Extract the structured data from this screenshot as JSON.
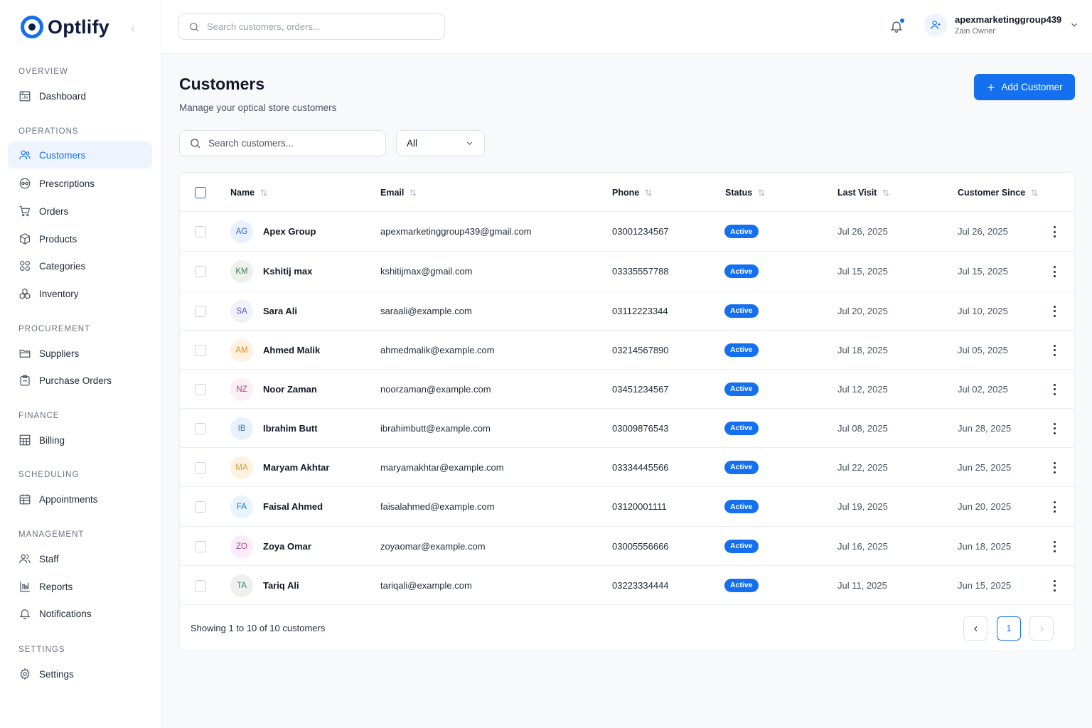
{
  "brand": {
    "name": "Optlify"
  },
  "topbar": {
    "search_placeholder": "Search customers, orders...",
    "user_name": "apexmarketinggroup439",
    "user_role": "Zain Owner"
  },
  "sidebar": {
    "sections": {
      "overview": "OVERVIEW",
      "operations": "OPERATIONS",
      "procurement": "PROCUREMENT",
      "finance": "FINANCE",
      "scheduling": "SCHEDULING",
      "management": "MANAGEMENT",
      "settings": "SETTINGS"
    },
    "items": {
      "dashboard": "Dashboard",
      "customers": "Customers",
      "prescriptions": "Prescriptions",
      "orders": "Orders",
      "products": "Products",
      "categories": "Categories",
      "inventory": "Inventory",
      "suppliers": "Suppliers",
      "purchase_orders": "Purchase Orders",
      "billing": "Billing",
      "appointments": "Appointments",
      "staff": "Staff",
      "reports": "Reports",
      "notifications": "Notifications",
      "settings": "Settings"
    },
    "active": "customers"
  },
  "page": {
    "title": "Customers",
    "subtitle": "Manage your optical store customers",
    "add_button": "Add Customer",
    "search_placeholder": "Search customers...",
    "status_filter": "All"
  },
  "table": {
    "columns": {
      "name": "Name",
      "email": "Email",
      "phone": "Phone",
      "status": "Status",
      "last_visit": "Last Visit",
      "customer_since": "Customer Since"
    },
    "rows": [
      {
        "initials": "AG",
        "name": "Apex Group",
        "email": "apexmarketinggroup439@gmail.com",
        "phone": "03001234567",
        "status": "Active",
        "last_visit": "Jul 26, 2025",
        "since": "Jul 26, 2025",
        "avatar_bg": "#e8f1fd",
        "avatar_fg": "#2f6fd0"
      },
      {
        "initials": "KM",
        "name": "Kshitij max",
        "email": "kshitijmax@gmail.com",
        "phone": "03335557788",
        "status": "Active",
        "last_visit": "Jul 15, 2025",
        "since": "Jul 15, 2025",
        "avatar_bg": "#eef0ee",
        "avatar_fg": "#2f8a4b"
      },
      {
        "initials": "SA",
        "name": "Sara Ali",
        "email": "saraali@example.com",
        "phone": "03112223344",
        "status": "Active",
        "last_visit": "Jul 20, 2025",
        "since": "Jul 10, 2025",
        "avatar_bg": "#f0f1fb",
        "avatar_fg": "#4a5cd3"
      },
      {
        "initials": "AM",
        "name": "Ahmed Malik",
        "email": "ahmedmalik@example.com",
        "phone": "03214567890",
        "status": "Active",
        "last_visit": "Jul 18, 2025",
        "since": "Jul 05, 2025",
        "avatar_bg": "#fdf1e2",
        "avatar_fg": "#e08a22"
      },
      {
        "initials": "NZ",
        "name": "Noor Zaman",
        "email": "noorzaman@example.com",
        "phone": "03451234567",
        "status": "Active",
        "last_visit": "Jul 12, 2025",
        "since": "Jul 02, 2025",
        "avatar_bg": "#fbeef5",
        "avatar_fg": "#b0457e"
      },
      {
        "initials": "IB",
        "name": "Ibrahim Butt",
        "email": "ibrahimbutt@example.com",
        "phone": "03009876543",
        "status": "Active",
        "last_visit": "Jul 08, 2025",
        "since": "Jun 28, 2025",
        "avatar_bg": "#e8f1fb",
        "avatar_fg": "#3b7ab8"
      },
      {
        "initials": "MA",
        "name": "Maryam Akhtar",
        "email": "maryamakhtar@example.com",
        "phone": "03334445566",
        "status": "Active",
        "last_visit": "Jul 22, 2025",
        "since": "Jun 25, 2025",
        "avatar_bg": "#fdf2e0",
        "avatar_fg": "#e49b2e"
      },
      {
        "initials": "FA",
        "name": "Faisal Ahmed",
        "email": "faisalahmed@example.com",
        "phone": "03120001111",
        "status": "Active",
        "last_visit": "Jul 19, 2025",
        "since": "Jun 20, 2025",
        "avatar_bg": "#e7f3fd",
        "avatar_fg": "#2877c7"
      },
      {
        "initials": "ZO",
        "name": "Zoya Omar",
        "email": "zoyaomar@example.com",
        "phone": "03005556666",
        "status": "Active",
        "last_visit": "Jul 16, 2025",
        "since": "Jun 18, 2025",
        "avatar_bg": "#fbedf7",
        "avatar_fg": "#b04596"
      },
      {
        "initials": "TA",
        "name": "Tariq Ali",
        "email": "tariqali@example.com",
        "phone": "03223334444",
        "status": "Active",
        "last_visit": "Jul 11, 2025",
        "since": "Jun 15, 2025",
        "avatar_bg": "#eef0ee",
        "avatar_fg": "#3d8a5e"
      }
    ]
  },
  "pagination": {
    "summary": "Showing 1 to 10 of 10 customers",
    "current_page": "1"
  },
  "colors": {
    "accent": "#1570ef",
    "active_nav_bg": "#eef4ff"
  }
}
